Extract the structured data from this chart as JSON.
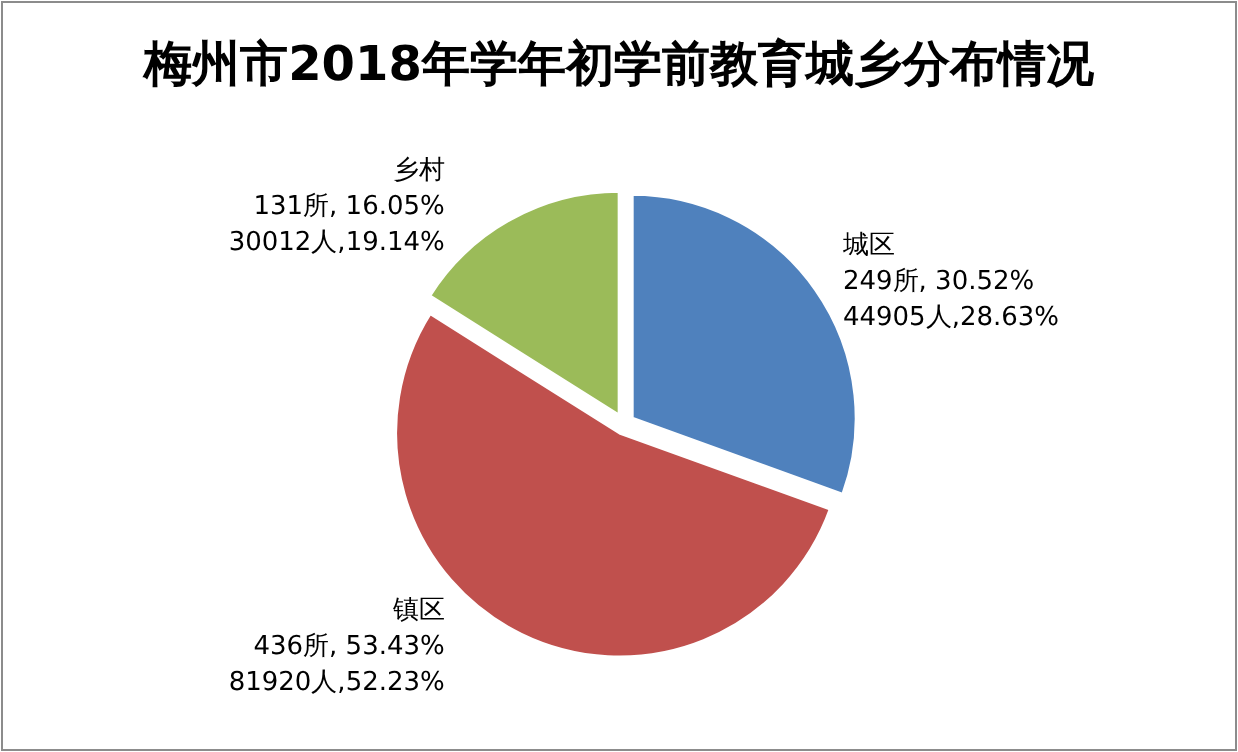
{
  "chart_data": {
    "type": "pie",
    "title": "梅州市2018年学年初学前教育城乡分布情况",
    "categories": [
      "城区",
      "镇区",
      "乡村"
    ],
    "values": [
      249,
      436,
      131
    ],
    "colors": [
      "#4f81bd",
      "#c0504d",
      "#9bbb59"
    ],
    "value_labels": [
      "249所, 30.52%\n44905人,28.63%",
      "436所, 53.43%\n81920人,52.23%",
      "131所, 16.05%\n30012人,19.14%"
    ]
  }
}
